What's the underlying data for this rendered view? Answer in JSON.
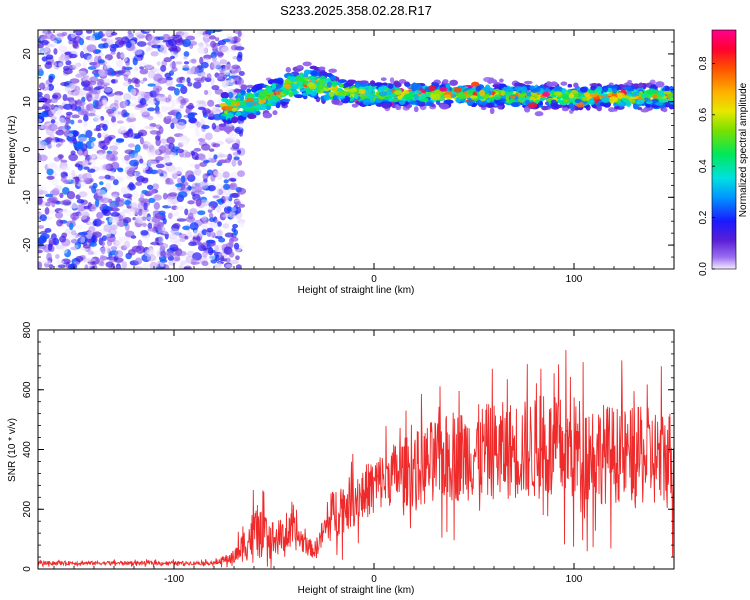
{
  "figure_title": "S233.2025.358.02.28.R17",
  "chart_data": [
    {
      "type": "heatmap",
      "title": "S233.2025.358.02.28.R17",
      "xlabel": "Height of straight line (km)",
      "ylabel": "Frequency (Hz)",
      "xlim": [
        -168,
        150
      ],
      "ylim": [
        -25,
        25
      ],
      "x_ticks": [
        -100,
        0,
        100
      ],
      "y_ticks": [
        -20,
        -10,
        0,
        10,
        20
      ],
      "colorbar": {
        "label": "Normalized spectral amplitude",
        "range": [
          0,
          0.93
        ],
        "ticks": [
          0.0,
          0.2,
          0.4,
          0.6,
          0.8
        ]
      },
      "noise_region_x": [
        -168,
        -70
      ],
      "signal_band": [
        {
          "x": -70,
          "y": 9.0
        },
        {
          "x": -60,
          "y": 10.0
        },
        {
          "x": -50,
          "y": 11.5
        },
        {
          "x": -40,
          "y": 13.5
        },
        {
          "x": -30,
          "y": 14.0
        },
        {
          "x": -20,
          "y": 12.5
        },
        {
          "x": -10,
          "y": 12.0
        },
        {
          "x": 0,
          "y": 11.5
        },
        {
          "x": 25,
          "y": 11.5
        },
        {
          "x": 50,
          "y": 11.5
        },
        {
          "x": 75,
          "y": 11.2
        },
        {
          "x": 100,
          "y": 11.0
        },
        {
          "x": 125,
          "y": 11.0
        },
        {
          "x": 150,
          "y": 11.0
        }
      ]
    },
    {
      "type": "line",
      "title": "",
      "xlabel": "Height of straight line (km)",
      "ylabel": "SNR (10 * v/v)",
      "xlim": [
        -168,
        150
      ],
      "ylim": [
        0,
        800
      ],
      "x_ticks": [
        -100,
        0,
        100
      ],
      "y_ticks": [
        0,
        200,
        400,
        600,
        800
      ],
      "series_color": "#ee2a2a",
      "envelope": [
        {
          "x": -168,
          "mean": 20,
          "spread": 8
        },
        {
          "x": -80,
          "mean": 20,
          "spread": 8
        },
        {
          "x": -70,
          "mean": 40,
          "spread": 30
        },
        {
          "x": -60,
          "mean": 120,
          "spread": 110
        },
        {
          "x": -50,
          "mean": 100,
          "spread": 80
        },
        {
          "x": -40,
          "mean": 120,
          "spread": 70
        },
        {
          "x": -30,
          "mean": 60,
          "spread": 30
        },
        {
          "x": -20,
          "mean": 190,
          "spread": 110
        },
        {
          "x": -10,
          "mean": 230,
          "spread": 110
        },
        {
          "x": 0,
          "mean": 280,
          "spread": 120
        },
        {
          "x": 10,
          "mean": 320,
          "spread": 130
        },
        {
          "x": 20,
          "mean": 330,
          "spread": 160
        },
        {
          "x": 30,
          "mean": 360,
          "spread": 180
        },
        {
          "x": 50,
          "mean": 390,
          "spread": 200
        },
        {
          "x": 75,
          "mean": 400,
          "spread": 210
        },
        {
          "x": 100,
          "mean": 400,
          "spread": 230
        },
        {
          "x": 125,
          "mean": 380,
          "spread": 200
        },
        {
          "x": 150,
          "mean": 370,
          "spread": 220
        }
      ]
    }
  ]
}
